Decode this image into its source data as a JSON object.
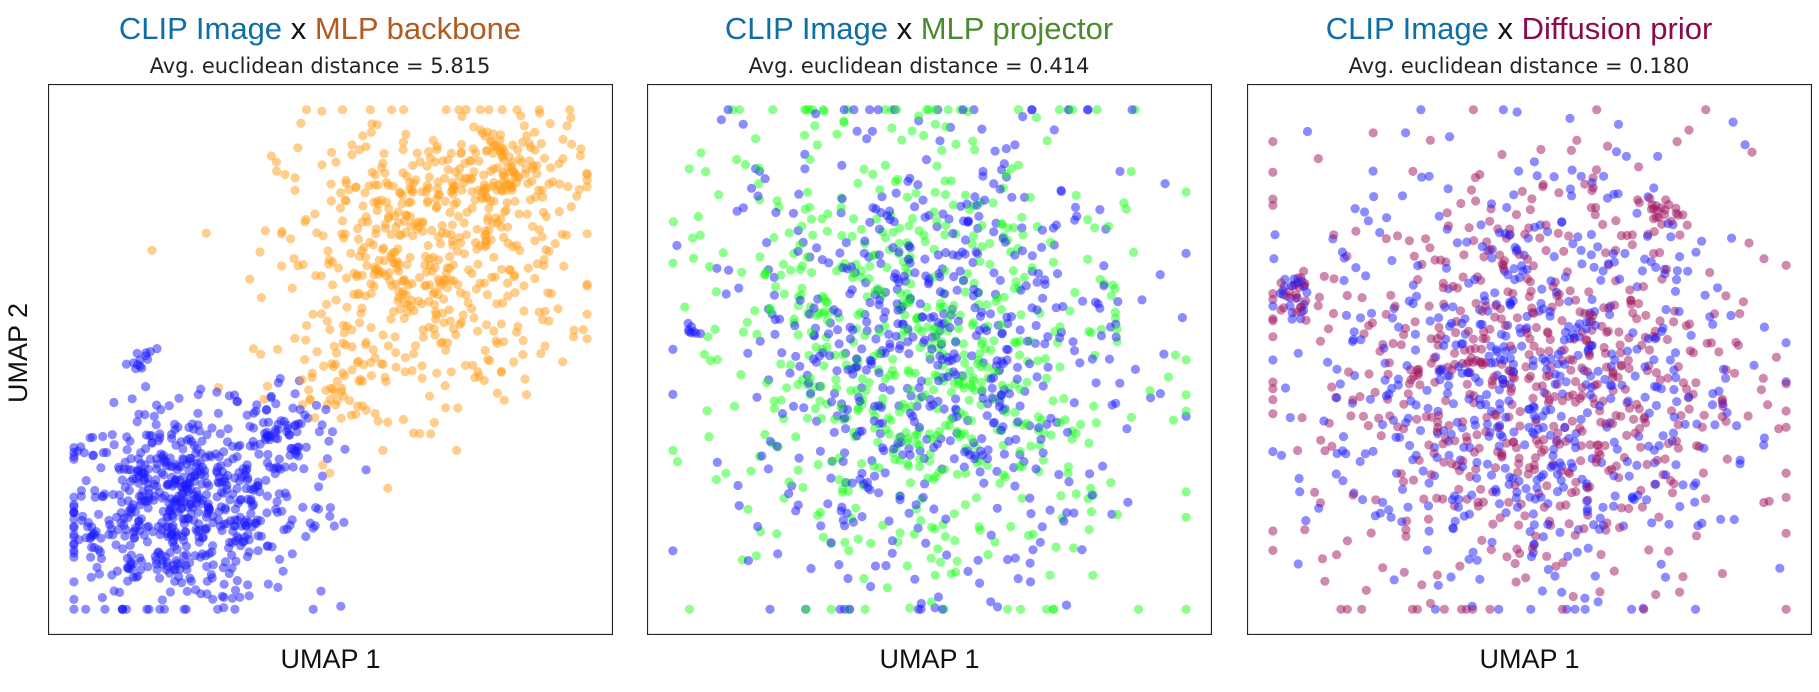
{
  "figure": {
    "ylabel": "UMAP 2",
    "xlabel": "UMAP 1"
  },
  "colors": {
    "clip": "#0f6ea6",
    "mlp_backbone": "#b35a1f",
    "mlp_projector": "#4b8b2f",
    "diffusion_prior": "#8a0a4e",
    "x_separator": "#111111",
    "point_clip": "#1a1aff",
    "point_backbone": "#ff9e1a",
    "point_projector": "#1aff1a",
    "point_prior": "#a01460"
  },
  "panels": [
    {
      "title_a": "CLIP Image",
      "title_x": "x",
      "title_b": "MLP backbone",
      "subtitle": "Avg. euclidean distance = 5.815"
    },
    {
      "title_a": "CLIP Image",
      "title_x": "x",
      "title_b": "MLP projector",
      "subtitle": "Avg. euclidean distance = 0.414"
    },
    {
      "title_a": "CLIP Image",
      "title_x": "x",
      "title_b": "Diffusion prior",
      "subtitle": "Avg. euclidean distance = 0.180"
    }
  ],
  "chart_data": [
    {
      "type": "scatter",
      "title": "CLIP Image x MLP backbone",
      "subtitle": "Avg. euclidean distance = 5.815",
      "xlabel": "UMAP 1",
      "ylabel": "UMAP 2",
      "xlim": [
        0,
        10
      ],
      "ylim": [
        0,
        10
      ],
      "axis_ticks": false,
      "grid": false,
      "series": [
        {
          "name": "CLIP Image",
          "color": "#1a1aff",
          "clusters": [
            {
              "cx": 2.2,
              "cy": 2.1,
              "sx": 1.1,
              "sy": 0.95,
              "n": 620
            },
            {
              "cx": 4.1,
              "cy": 3.6,
              "sx": 0.55,
              "sy": 0.55,
              "n": 70
            },
            {
              "cx": 1.4,
              "cy": 5.0,
              "sx": 0.12,
              "sy": 0.15,
              "n": 12
            },
            {
              "cx": 0.5,
              "cy": 1.7,
              "sx": 0.15,
              "sy": 0.12,
              "n": 12
            },
            {
              "cx": 5.0,
              "cy": 2.0,
              "sx": 0.2,
              "sy": 0.12,
              "n": 8
            }
          ]
        },
        {
          "name": "MLP backbone",
          "color": "#ff9e1a",
          "clusters": [
            {
              "cx": 6.7,
              "cy": 6.9,
              "sx": 1.35,
              "sy": 1.4,
              "n": 520
            },
            {
              "cx": 8.3,
              "cy": 8.6,
              "sx": 0.75,
              "sy": 0.6,
              "n": 140
            },
            {
              "cx": 5.2,
              "cy": 4.7,
              "sx": 0.55,
              "sy": 0.4,
              "n": 50
            }
          ]
        }
      ]
    },
    {
      "type": "scatter",
      "title": "CLIP Image x MLP projector",
      "subtitle": "Avg. euclidean distance = 0.414",
      "xlabel": "UMAP 1",
      "ylim": [
        0,
        10
      ],
      "xlim": [
        0,
        10
      ],
      "axis_ticks": false,
      "grid": false,
      "series": [
        {
          "name": "CLIP Image",
          "color": "#1a1aff",
          "clusters": [
            {
              "cx": 5.0,
              "cy": 5.2,
              "sx": 1.9,
              "sy": 2.3,
              "n": 620
            },
            {
              "cx": 0.5,
              "cy": 5.5,
              "sx": 0.1,
              "sy": 0.15,
              "n": 8
            }
          ]
        },
        {
          "name": "MLP projector",
          "color": "#1aff1a",
          "clusters": [
            {
              "cx": 5.0,
              "cy": 5.2,
              "sx": 2.0,
              "sy": 2.4,
              "n": 660
            }
          ]
        }
      ]
    },
    {
      "type": "scatter",
      "title": "CLIP Image x Diffusion prior",
      "subtitle": "Avg. euclidean distance = 0.180",
      "xlabel": "UMAP 1",
      "xlim": [
        0,
        10
      ],
      "ylim": [
        0,
        10
      ],
      "axis_ticks": false,
      "grid": false,
      "series": [
        {
          "name": "CLIP Image",
          "color": "#1a1aff",
          "clusters": [
            {
              "cx": 5.0,
              "cy": 4.6,
              "sx": 2.0,
              "sy": 2.1,
              "n": 600
            },
            {
              "cx": 0.6,
              "cy": 6.2,
              "sx": 0.2,
              "sy": 0.2,
              "n": 15
            }
          ]
        },
        {
          "name": "Diffusion prior",
          "color": "#a01460",
          "clusters": [
            {
              "cx": 5.0,
              "cy": 4.6,
              "sx": 2.1,
              "sy": 2.2,
              "n": 640
            },
            {
              "cx": 0.6,
              "cy": 6.2,
              "sx": 0.25,
              "sy": 0.25,
              "n": 25
            },
            {
              "cx": 7.4,
              "cy": 7.9,
              "sx": 0.2,
              "sy": 0.15,
              "n": 20
            }
          ]
        }
      ]
    }
  ]
}
